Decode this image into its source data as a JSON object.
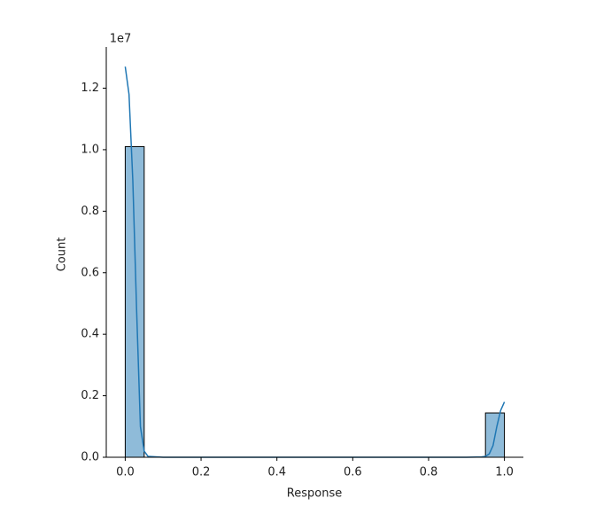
{
  "chart_data": {
    "type": "histogram",
    "x_label": "Response",
    "y_label": "Count",
    "y_offset_label": "1e7",
    "bins": [
      0,
      0.05,
      0.1,
      0.15,
      0.2,
      0.25,
      0.3,
      0.35,
      0.4,
      0.45,
      0.5,
      0.55,
      0.6,
      0.65,
      0.7,
      0.75,
      0.8,
      0.85,
      0.9,
      0.95,
      1.0
    ],
    "counts": [
      10100000,
      0,
      0,
      0,
      0,
      0,
      0,
      0,
      0,
      0,
      0,
      0,
      0,
      0,
      0,
      0,
      0,
      0,
      0,
      1440000
    ],
    "color": "#1f77b4",
    "edge_color": "#000000",
    "kde": {
      "x": [
        0,
        0.01,
        0.02,
        0.03,
        0.04,
        0.05,
        0.06,
        0.1,
        0.3,
        0.5,
        0.7,
        0.9,
        0.94,
        0.95,
        0.96,
        0.97,
        0.98,
        0.99,
        1.0
      ],
      "values": [
        12700000,
        11800000,
        9000000,
        4800000,
        1000000,
        200000,
        30000,
        0,
        0,
        0,
        0,
        0,
        10000,
        30000,
        110000,
        380000,
        1000000,
        1520000,
        1800000
      ],
      "color": "#1f77b4"
    },
    "xlim": [
      -0.05,
      1.05
    ],
    "ylim": [
      0,
      13340000
    ],
    "xticks": [
      {
        "value": 0,
        "label": "0.0"
      },
      0.2,
      0.4,
      0.6,
      0.8,
      {
        "value": 1,
        "label": "1.0"
      }
    ],
    "yticks": [
      {
        "value": 0,
        "label": "0.0"
      },
      {
        "value": 2000000,
        "label": "0.2"
      },
      {
        "value": 4000000,
        "label": "0.4"
      },
      {
        "value": 6000000,
        "label": "0.6"
      },
      {
        "value": 8000000,
        "label": "0.8"
      },
      {
        "value": 10000000,
        "label": "1.0"
      },
      {
        "value": 12000000,
        "label": "1.2"
      }
    ]
  }
}
